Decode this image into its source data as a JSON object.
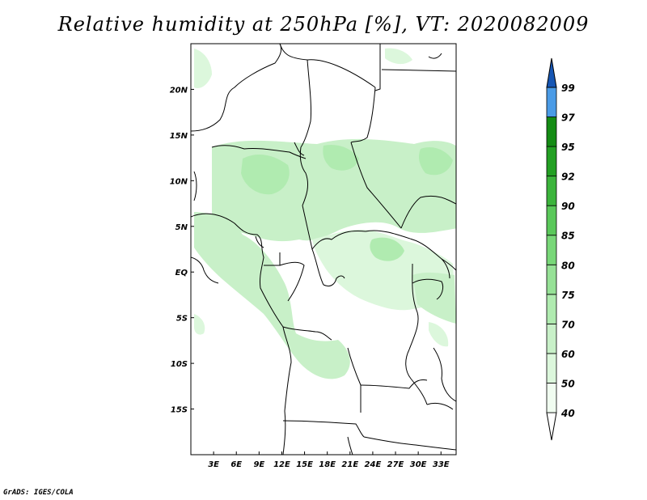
{
  "title": "Relative humidity at 250hPa [%], VT: 2020082009",
  "credit": "GrADS: IGES/COLA",
  "map": {
    "lat_labels": [
      "20N",
      "15N",
      "10N",
      "5N",
      "EQ",
      "5S",
      "10S",
      "15S"
    ],
    "lat_values": [
      20,
      15,
      10,
      5,
      0,
      -5,
      -10,
      -15
    ],
    "lon_labels": [
      "3E",
      "6E",
      "9E",
      "12E",
      "15E",
      "18E",
      "21E",
      "24E",
      "27E",
      "30E",
      "33E"
    ],
    "lon_values": [
      3,
      6,
      9,
      12,
      15,
      18,
      21,
      24,
      27,
      30,
      33
    ],
    "lon_range": [
      0,
      35
    ],
    "lat_range": [
      -20,
      25
    ]
  },
  "colorbar": {
    "levels": [
      "40",
      "50",
      "60",
      "70",
      "75",
      "80",
      "85",
      "90",
      "92",
      "95",
      "97",
      "99"
    ],
    "colors": [
      "#f0fcf0",
      "#dcf7dc",
      "#c8f0c8",
      "#b0ebb0",
      "#96e196",
      "#78d778",
      "#5ac85a",
      "#3cb43c",
      "#23a023",
      "#148c14",
      "#4a9be6",
      "#2a78d6",
      "#1656b4"
    ],
    "lowest_color": "#ffffff"
  }
}
